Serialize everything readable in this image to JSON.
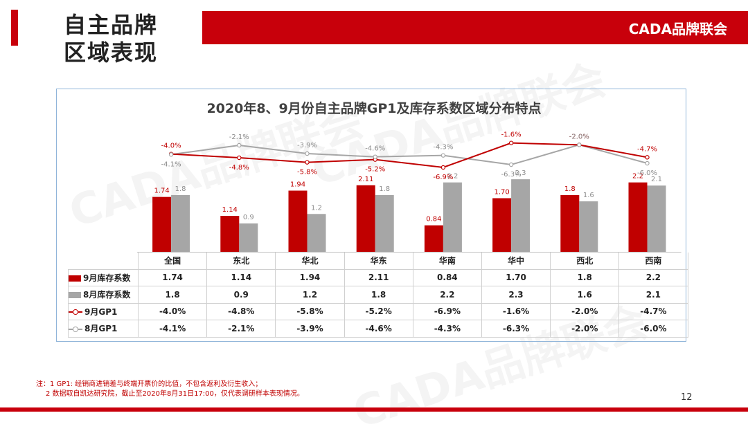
{
  "slide": {
    "title_line1": "自主品牌",
    "title_line2": "区域表现",
    "brand": "CADA品牌联会",
    "page_number": "12",
    "watermark": "CADA品牌联会",
    "notes": [
      "注：1  GP1: 经销商进销差与终端开票价的比值，不包含返利及衍生收入；",
      "2 数据取自凯达研究院，截止至2020年8月31日17:00，仅代表调研样本表现情况。"
    ]
  },
  "colors": {
    "red": "#c00000",
    "gray": "#a6a6a6",
    "brand_red": "#c8000b"
  },
  "chart_data": {
    "type": "bar",
    "title": "2020年8、9月份自主品牌GP1及库存系数区域分布特点",
    "categories": [
      "全国",
      "东北",
      "华北",
      "华东",
      "华南",
      "华中",
      "西北",
      "西南"
    ],
    "series": [
      {
        "name": "9月库存系数",
        "kind": "bar",
        "color": "#c00000",
        "values": [
          1.74,
          1.14,
          1.94,
          2.11,
          0.84,
          1.7,
          1.8,
          2.2
        ],
        "labels": [
          "1.74",
          "1.14",
          "1.94",
          "2.11",
          "0.84",
          "1.70",
          "1.8",
          "2.2"
        ]
      },
      {
        "name": "8月库存系数",
        "kind": "bar",
        "color": "#a6a6a6",
        "values": [
          1.8,
          0.9,
          1.2,
          1.8,
          2.2,
          2.3,
          1.6,
          2.1
        ],
        "labels": [
          "1.8",
          "0.9",
          "1.2",
          "1.8",
          "2.2",
          "2.3",
          "1.6",
          "2.1"
        ]
      },
      {
        "name": "9月GP1",
        "kind": "line",
        "color": "#c00000",
        "values": [
          -4.0,
          -4.8,
          -5.8,
          -5.2,
          -6.9,
          -1.6,
          -2.0,
          -4.7
        ],
        "labels": [
          "-4.0%",
          "-4.8%",
          "-5.8%",
          "-5.2%",
          "-6.9%",
          "-1.6%",
          "-2.0%",
          "-4.7%"
        ]
      },
      {
        "name": "8月GP1",
        "kind": "line",
        "color": "#a6a6a6",
        "values": [
          -4.1,
          -2.1,
          -3.9,
          -4.6,
          -4.3,
          -6.3,
          -2.0,
          -6.0
        ],
        "labels": [
          "-4.1%",
          "-2.1%",
          "-3.9%",
          "-4.6%",
          "-4.3%",
          "-6.3%",
          "-2.0%",
          "-6.0%"
        ]
      }
    ],
    "bar_axis_range": [
      0,
      2.5
    ],
    "line_axis_range": [
      -9,
      0
    ],
    "grid": false,
    "legend": "data-table"
  }
}
